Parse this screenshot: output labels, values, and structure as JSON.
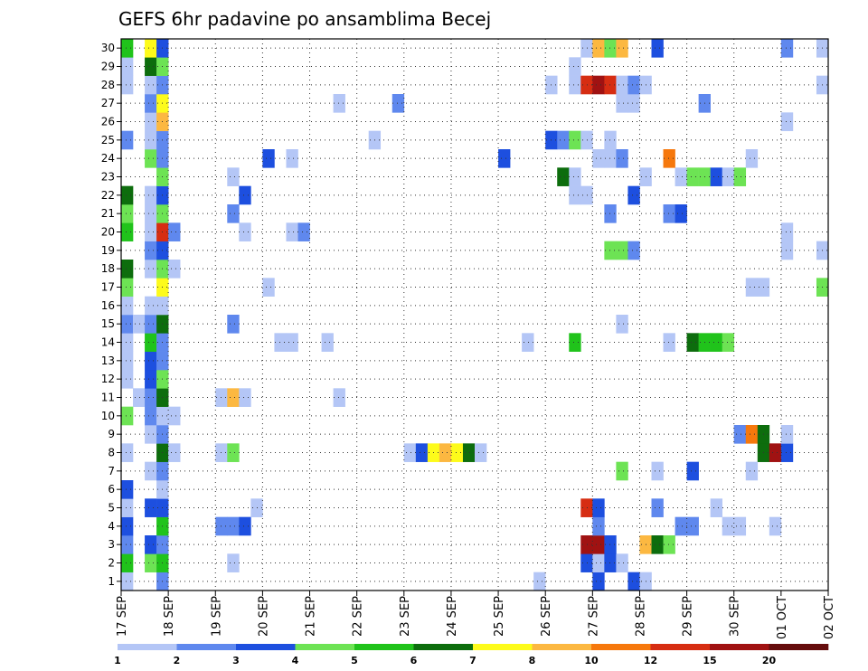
{
  "chart_data": {
    "type": "heatmap",
    "title": "GEFS 6hr padavine po ansamblima Becej",
    "x_ticks": [
      "17 SEP",
      "18 SEP",
      "19 SEP",
      "20 SEP",
      "21 SEP",
      "22 SEP",
      "23 SEP",
      "24 SEP",
      "25 SEP",
      "26 SEP",
      "27 SEP",
      "28 SEP",
      "29 SEP",
      "30 SEP",
      "01 OCT",
      "02 OCT"
    ],
    "y_members": [
      1,
      2,
      3,
      4,
      5,
      6,
      7,
      8,
      9,
      10,
      11,
      12,
      13,
      14,
      15,
      16,
      17,
      18,
      19,
      20,
      21,
      22,
      23,
      24,
      25,
      26,
      27,
      28,
      29,
      30
    ],
    "steps_per_day": 4,
    "n_steps": 60,
    "colorbar": {
      "labels": [
        "1",
        "2",
        "3",
        "4",
        "5",
        "6",
        "7",
        "8",
        "10",
        "12",
        "15",
        "20"
      ],
      "colors": [
        "#b4c6f6",
        "#5f88ee",
        "#1d4fdf",
        "#6de354",
        "#20c31b",
        "#0d6d0d",
        "#fdfb1b",
        "#fcb841",
        "#f6780c",
        "#d62d12",
        "#a01212",
        "#650d0d"
      ]
    },
    "cells": [
      [
        1,
        0,
        1
      ],
      [
        1,
        3,
        2
      ],
      [
        1,
        35,
        1
      ],
      [
        1,
        40,
        3
      ],
      [
        1,
        43,
        3
      ],
      [
        1,
        44,
        1
      ],
      [
        2,
        0,
        5
      ],
      [
        2,
        2,
        4
      ],
      [
        2,
        3,
        5
      ],
      [
        2,
        9,
        1
      ],
      [
        2,
        39,
        3
      ],
      [
        2,
        40,
        1
      ],
      [
        2,
        41,
        3
      ],
      [
        2,
        42,
        1
      ],
      [
        3,
        0,
        2
      ],
      [
        3,
        2,
        3
      ],
      [
        3,
        3,
        2
      ],
      [
        3,
        39,
        11
      ],
      [
        3,
        40,
        11
      ],
      [
        3,
        41,
        3
      ],
      [
        3,
        44,
        8
      ],
      [
        3,
        45,
        6
      ],
      [
        3,
        46,
        4
      ],
      [
        4,
        0,
        3
      ],
      [
        4,
        3,
        5
      ],
      [
        4,
        8,
        2
      ],
      [
        4,
        9,
        2
      ],
      [
        4,
        10,
        3
      ],
      [
        4,
        40,
        2
      ],
      [
        4,
        47,
        2
      ],
      [
        4,
        48,
        2
      ],
      [
        4,
        51,
        1
      ],
      [
        4,
        52,
        1
      ],
      [
        4,
        55,
        1
      ],
      [
        5,
        0,
        1
      ],
      [
        5,
        2,
        3
      ],
      [
        5,
        3,
        3
      ],
      [
        5,
        11,
        1
      ],
      [
        5,
        39,
        10
      ],
      [
        5,
        40,
        3
      ],
      [
        5,
        45,
        2
      ],
      [
        5,
        50,
        1
      ],
      [
        6,
        0,
        3
      ],
      [
        6,
        3,
        1
      ],
      [
        7,
        2,
        1
      ],
      [
        7,
        3,
        2
      ],
      [
        7,
        42,
        4
      ],
      [
        7,
        45,
        1
      ],
      [
        7,
        48,
        3
      ],
      [
        7,
        53,
        1
      ],
      [
        8,
        0,
        1
      ],
      [
        8,
        3,
        6
      ],
      [
        8,
        4,
        1
      ],
      [
        8,
        8,
        1
      ],
      [
        8,
        9,
        4
      ],
      [
        8,
        24,
        1
      ],
      [
        8,
        25,
        3
      ],
      [
        8,
        26,
        7
      ],
      [
        8,
        27,
        8
      ],
      [
        8,
        28,
        7
      ],
      [
        8,
        29,
        6
      ],
      [
        8,
        30,
        1
      ],
      [
        8,
        54,
        6
      ],
      [
        8,
        55,
        11
      ],
      [
        8,
        56,
        3
      ],
      [
        9,
        2,
        1
      ],
      [
        9,
        3,
        2
      ],
      [
        9,
        52,
        2
      ],
      [
        9,
        53,
        9
      ],
      [
        9,
        54,
        6
      ],
      [
        9,
        56,
        1
      ],
      [
        10,
        0,
        4
      ],
      [
        10,
        2,
        2
      ],
      [
        10,
        3,
        1
      ],
      [
        10,
        4,
        1
      ],
      [
        11,
        1,
        1
      ],
      [
        11,
        2,
        2
      ],
      [
        11,
        3,
        6
      ],
      [
        11,
        8,
        1
      ],
      [
        11,
        9,
        8
      ],
      [
        11,
        10,
        1
      ],
      [
        11,
        18,
        1
      ],
      [
        12,
        0,
        1
      ],
      [
        12,
        2,
        3
      ],
      [
        12,
        3,
        4
      ],
      [
        13,
        0,
        1
      ],
      [
        13,
        2,
        3
      ],
      [
        13,
        3,
        2
      ],
      [
        14,
        0,
        1
      ],
      [
        14,
        2,
        5
      ],
      [
        14,
        3,
        2
      ],
      [
        14,
        13,
        1
      ],
      [
        14,
        14,
        1
      ],
      [
        14,
        17,
        1
      ],
      [
        14,
        34,
        1
      ],
      [
        14,
        38,
        5
      ],
      [
        14,
        46,
        1
      ],
      [
        14,
        48,
        6
      ],
      [
        14,
        49,
        5
      ],
      [
        14,
        50,
        5
      ],
      [
        14,
        51,
        4
      ],
      [
        15,
        0,
        2
      ],
      [
        15,
        1,
        1
      ],
      [
        15,
        2,
        2
      ],
      [
        15,
        3,
        6
      ],
      [
        15,
        9,
        2
      ],
      [
        15,
        42,
        1
      ],
      [
        16,
        0,
        1
      ],
      [
        16,
        2,
        1
      ],
      [
        16,
        3,
        1
      ],
      [
        17,
        0,
        4
      ],
      [
        17,
        3,
        7
      ],
      [
        17,
        12,
        1
      ],
      [
        17,
        53,
        1
      ],
      [
        17,
        54,
        1
      ],
      [
        17,
        59,
        4
      ],
      [
        18,
        0,
        6
      ],
      [
        18,
        2,
        1
      ],
      [
        18,
        3,
        4
      ],
      [
        18,
        4,
        1
      ],
      [
        19,
        2,
        2
      ],
      [
        19,
        3,
        3
      ],
      [
        19,
        41,
        4
      ],
      [
        19,
        42,
        4
      ],
      [
        19,
        43,
        2
      ],
      [
        19,
        56,
        1
      ],
      [
        19,
        59,
        1
      ],
      [
        20,
        0,
        5
      ],
      [
        20,
        2,
        1
      ],
      [
        20,
        3,
        10
      ],
      [
        20,
        4,
        2
      ],
      [
        20,
        10,
        1
      ],
      [
        20,
        14,
        1
      ],
      [
        20,
        15,
        2
      ],
      [
        20,
        56,
        1
      ],
      [
        21,
        0,
        4
      ],
      [
        21,
        2,
        1
      ],
      [
        21,
        3,
        4
      ],
      [
        21,
        9,
        2
      ],
      [
        21,
        41,
        2
      ],
      [
        21,
        46,
        2
      ],
      [
        21,
        47,
        3
      ],
      [
        22,
        0,
        6
      ],
      [
        22,
        2,
        1
      ],
      [
        22,
        3,
        3
      ],
      [
        22,
        10,
        3
      ],
      [
        22,
        38,
        1
      ],
      [
        22,
        39,
        1
      ],
      [
        22,
        43,
        3
      ],
      [
        23,
        3,
        4
      ],
      [
        23,
        9,
        1
      ],
      [
        23,
        37,
        6
      ],
      [
        23,
        38,
        1
      ],
      [
        23,
        44,
        1
      ],
      [
        23,
        47,
        1
      ],
      [
        23,
        48,
        4
      ],
      [
        23,
        49,
        4
      ],
      [
        23,
        50,
        3
      ],
      [
        23,
        51,
        1
      ],
      [
        23,
        52,
        4
      ],
      [
        24,
        2,
        4
      ],
      [
        24,
        3,
        2
      ],
      [
        24,
        12,
        3
      ],
      [
        24,
        14,
        1
      ],
      [
        24,
        32,
        3
      ],
      [
        24,
        40,
        1
      ],
      [
        24,
        41,
        1
      ],
      [
        24,
        42,
        2
      ],
      [
        24,
        46,
        9
      ],
      [
        24,
        53,
        1
      ],
      [
        25,
        0,
        2
      ],
      [
        25,
        2,
        1
      ],
      [
        25,
        3,
        2
      ],
      [
        25,
        21,
        1
      ],
      [
        25,
        36,
        3
      ],
      [
        25,
        37,
        2
      ],
      [
        25,
        38,
        4
      ],
      [
        25,
        39,
        1
      ],
      [
        25,
        41,
        1
      ],
      [
        26,
        2,
        1
      ],
      [
        26,
        3,
        8
      ],
      [
        26,
        56,
        1
      ],
      [
        27,
        2,
        2
      ],
      [
        27,
        3,
        7
      ],
      [
        27,
        18,
        1
      ],
      [
        27,
        23,
        2
      ],
      [
        27,
        42,
        1
      ],
      [
        27,
        43,
        1
      ],
      [
        27,
        49,
        2
      ],
      [
        28,
        0,
        1
      ],
      [
        28,
        2,
        1
      ],
      [
        28,
        3,
        2
      ],
      [
        28,
        36,
        1
      ],
      [
        28,
        38,
        1
      ],
      [
        28,
        39,
        10
      ],
      [
        28,
        40,
        11
      ],
      [
        28,
        41,
        10
      ],
      [
        28,
        42,
        1
      ],
      [
        28,
        43,
        2
      ],
      [
        28,
        44,
        1
      ],
      [
        28,
        59,
        1
      ],
      [
        29,
        0,
        1
      ],
      [
        29,
        2,
        6
      ],
      [
        29,
        3,
        4
      ],
      [
        29,
        38,
        1
      ],
      [
        30,
        0,
        5
      ],
      [
        30,
        2,
        7
      ],
      [
        30,
        3,
        3
      ],
      [
        30,
        39,
        1
      ],
      [
        30,
        40,
        8
      ],
      [
        30,
        41,
        4
      ],
      [
        30,
        42,
        8
      ],
      [
        30,
        45,
        3
      ],
      [
        30,
        56,
        2
      ],
      [
        30,
        59,
        1
      ]
    ]
  }
}
